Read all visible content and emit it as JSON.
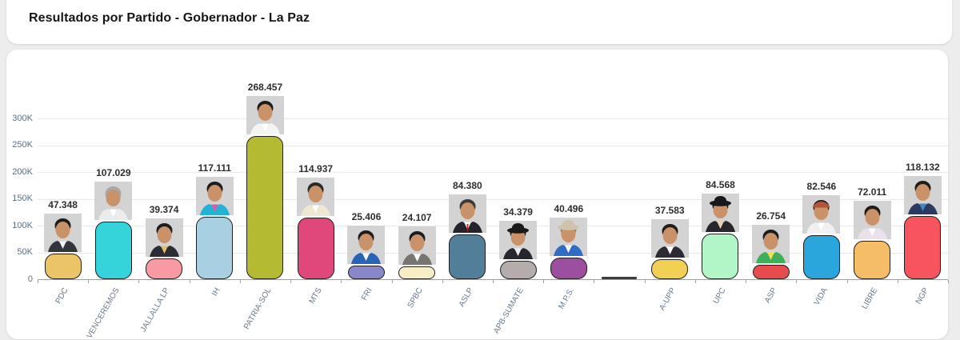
{
  "page_background": "#ededed",
  "header": {
    "title": "Resultados por Partido - Gobernador - La Paz"
  },
  "chart_data": {
    "type": "bar",
    "title": "Resultados por Partido - Gobernador - La Paz",
    "xlabel": "",
    "ylabel": "",
    "ylim": [
      0,
      300000
    ],
    "ytick_labels": [
      "0",
      "50K",
      "100K",
      "150K",
      "200K",
      "250K",
      "300K"
    ],
    "grid": true,
    "legend": "none",
    "categories": [
      "PDC",
      "VENCEREMOS",
      "JALLALLA LP",
      "IH",
      "PATRIA-SOL",
      "MTS",
      "FRI",
      "SPBC",
      "ASLP",
      "APB-SUMATE",
      "M.P.S.",
      "",
      "A-UPP",
      "UPC",
      "ASP",
      "VIDA",
      "LIBRE",
      "NGP"
    ],
    "values": [
      47348,
      107029,
      39374,
      117111,
      268457,
      114937,
      25406,
      24107,
      84380,
      34379,
      40496,
      0,
      37583,
      84568,
      26754,
      82546,
      72011,
      118132
    ],
    "value_labels": [
      "47.348",
      "107.029",
      "39.374",
      "117.111",
      "268.457",
      "114.937",
      "25.406",
      "24.107",
      "84.380",
      "34.379",
      "40.496",
      "",
      "37.583",
      "84.568",
      "26.754",
      "82.546",
      "72.011",
      "118.132"
    ],
    "bar_colors": [
      "#ecc468",
      "#35d3da",
      "#f89aa4",
      "#a8cfe2",
      "#b5ba33",
      "#e0487c",
      "#8986c9",
      "#f8eec6",
      "#527e9a",
      "#b5acae",
      "#9c4f9e",
      "#3c3c3c",
      "#f2cf55",
      "#b2f6c8",
      "#e84b4d",
      "#2ba6dc",
      "#f6bd69",
      "#f8545f"
    ],
    "bar_border_color": "#1f1f1f",
    "axis_color": "#9aa0a6",
    "grid_color": "#e9e9e9",
    "value_label_color": "#2e2e2e",
    "tick_label_color": "#68788a",
    "photos": [
      {
        "bg": "#d3d3d3",
        "jacket": "#33343c",
        "shirt": "#f2f2f2",
        "hair": "#1d1d1d",
        "hat": null,
        "hat_type": null,
        "tie": null
      },
      {
        "bg": "#d3d3d3",
        "jacket": "#ececec",
        "shirt": "#ffffff",
        "hair": "#a8a8a8",
        "hat": null,
        "hat_type": null,
        "tie": null
      },
      {
        "bg": "#d3d3d3",
        "jacket": "#2c2c34",
        "shirt": "#e6c26a",
        "hair": "#1d1d1d",
        "hat": null,
        "hat_type": null,
        "tie": null
      },
      {
        "bg": "#d3d3d3",
        "jacket": "#22b2d6",
        "shirt": "#d35fa8",
        "hair": "#1d1d1d",
        "hat": null,
        "hat_type": null,
        "tie": null
      },
      {
        "bg": "#d3d3d3",
        "jacket": "#f4f4f4",
        "shirt": "#ffffff",
        "hair": "#1d1d1d",
        "hat": null,
        "hat_type": null,
        "tie": null
      },
      {
        "bg": "#d3d3d3",
        "jacket": "#efe7d2",
        "shirt": "#ffffff",
        "hair": "#2a2a2a",
        "hat": null,
        "hat_type": null,
        "tie": null
      },
      {
        "bg": "#d3d3d3",
        "jacket": "#2a62b8",
        "shirt": "#ffffff",
        "hair": "#1d1d1d",
        "hat": null,
        "hat_type": null,
        "tie": null
      },
      {
        "bg": "#d3d3d3",
        "jacket": "#76766e",
        "shirt": "#ffffff",
        "hair": "#1d1d1d",
        "hat": null,
        "hat_type": null,
        "tie": null
      },
      {
        "bg": "#d3d3d3",
        "jacket": "#23232b",
        "shirt": "#ffffff",
        "hair": "#3a3a3a",
        "hat": null,
        "hat_type": null,
        "tie": "#c02020"
      },
      {
        "bg": "#d3d3d3",
        "jacket": "#26262e",
        "shirt": "#e8eef2",
        "hair": "#1d1d1d",
        "hat": "#1a1a1a",
        "hat_type": "brim",
        "tie": null
      },
      {
        "bg": "#d3d3d3",
        "jacket": "#2f6cc4",
        "shirt": "#ffffff",
        "hair": "#888888",
        "hat": "#cfc3ab",
        "hat_type": "brim",
        "tie": null
      },
      null,
      {
        "bg": "#d3d3d3",
        "jacket": "#2b2b33",
        "shirt": "#ffffff",
        "hair": "#1d1d1d",
        "hat": null,
        "hat_type": null,
        "tie": null
      },
      {
        "bg": "#d3d3d3",
        "jacket": "#26262c",
        "shirt": "#e3d3b2",
        "hair": "#1d1d1d",
        "hat": "#17171d",
        "hat_type": "brim",
        "tie": null
      },
      {
        "bg": "#d3d3d3",
        "jacket": "#3fae58",
        "shirt": "#f2df52",
        "hair": "#1d1d1d",
        "hat": null,
        "hat_type": null,
        "tie": null
      },
      {
        "bg": "#d3d3d3",
        "jacket": "#f0f0f0",
        "shirt": "#ffffff",
        "hair": "#1d1d1d",
        "hat": "#b0543c",
        "hat_type": "cap",
        "tie": null
      },
      {
        "bg": "#d3d3d3",
        "jacket": "#e9e2ec",
        "shirt": "#ffffff",
        "hair": "#1d1d1d",
        "hat": null,
        "hat_type": null,
        "tie": null
      },
      {
        "bg": "#d3d3d3",
        "jacket": "#2a3a60",
        "shirt": "#3f86c8",
        "hair": "#1d1d1d",
        "hat": null,
        "hat_type": null,
        "tie": null
      }
    ]
  }
}
